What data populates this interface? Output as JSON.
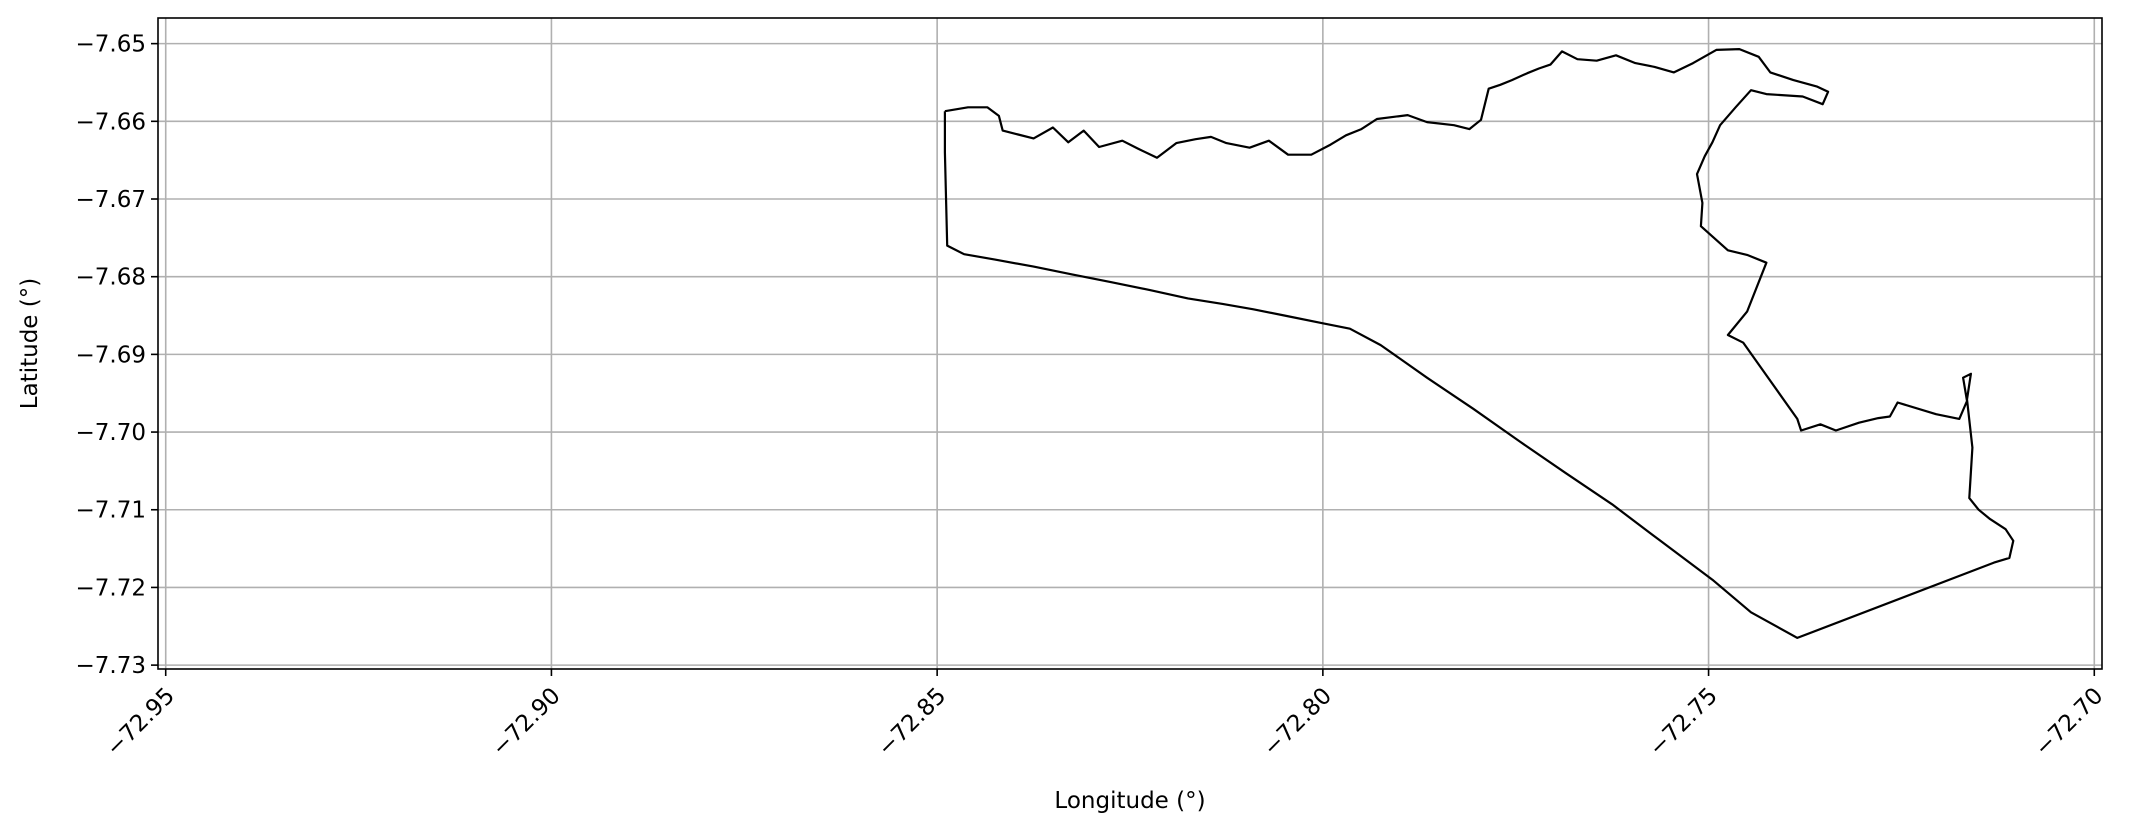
{
  "chart_data": {
    "type": "line",
    "xlabel": "Longitude (°)",
    "ylabel": "Latitude (°)",
    "xlim": [
      -72.951,
      -72.699
    ],
    "ylim": [
      -7.7305,
      -7.6467
    ],
    "grid": true,
    "x_ticks": [
      -72.95,
      -72.9,
      -72.85,
      -72.8,
      -72.75,
      -72.7
    ],
    "x_tick_labels": [
      "−72.95",
      "−72.90",
      "−72.85",
      "−72.80",
      "−72.75",
      "−72.70"
    ],
    "y_ticks": [
      -7.65,
      -7.66,
      -7.67,
      -7.68,
      -7.69,
      -7.7,
      -7.71,
      -7.72,
      -7.73
    ],
    "y_tick_labels": [
      "−7.65",
      "−7.66",
      "−7.67",
      "−7.68",
      "−7.69",
      "−7.70",
      "−7.71",
      "−7.72",
      "−7.73"
    ],
    "series": [
      {
        "color": "#000000",
        "points": [
          [
            -72.849,
            -7.6587
          ],
          [
            -72.846,
            -7.6582
          ],
          [
            -72.8435,
            -7.6582
          ],
          [
            -72.842,
            -7.6593
          ],
          [
            -72.8415,
            -7.6612
          ],
          [
            -72.8395,
            -7.6617
          ],
          [
            -72.8375,
            -7.6622
          ],
          [
            -72.835,
            -7.6608
          ],
          [
            -72.833,
            -7.6627
          ],
          [
            -72.831,
            -7.6612
          ],
          [
            -72.829,
            -7.6633
          ],
          [
            -72.826,
            -7.6625
          ],
          [
            -72.824,
            -7.6635
          ],
          [
            -72.8215,
            -7.6647
          ],
          [
            -72.819,
            -7.6628
          ],
          [
            -72.8165,
            -7.6623
          ],
          [
            -72.8145,
            -7.662
          ],
          [
            -72.8125,
            -7.6628
          ],
          [
            -72.8095,
            -7.6634
          ],
          [
            -72.807,
            -7.6625
          ],
          [
            -72.8045,
            -7.6643
          ],
          [
            -72.8015,
            -7.6643
          ],
          [
            -72.799,
            -7.663
          ],
          [
            -72.797,
            -7.6618
          ],
          [
            -72.795,
            -7.661
          ],
          [
            -72.793,
            -7.6597
          ],
          [
            -72.789,
            -7.6592
          ],
          [
            -72.7865,
            -7.6601
          ],
          [
            -72.783,
            -7.6605
          ],
          [
            -72.781,
            -7.661
          ],
          [
            -72.7795,
            -7.6598
          ],
          [
            -72.7785,
            -7.6558
          ],
          [
            -72.777,
            -7.6553
          ],
          [
            -72.7755,
            -7.6547
          ],
          [
            -72.7735,
            -7.6538
          ],
          [
            -72.772,
            -7.6532
          ],
          [
            -72.7705,
            -7.6527
          ],
          [
            -72.769,
            -7.651
          ],
          [
            -72.767,
            -7.652
          ],
          [
            -72.7645,
            -7.6522
          ],
          [
            -72.762,
            -7.6515
          ],
          [
            -72.7595,
            -7.6525
          ],
          [
            -72.757,
            -7.653
          ],
          [
            -72.7545,
            -7.6537
          ],
          [
            -72.752,
            -7.6525
          ],
          [
            -72.749,
            -7.6508
          ],
          [
            -72.746,
            -7.6507
          ],
          [
            -72.7435,
            -7.6517
          ],
          [
            -72.742,
            -7.6537
          ],
          [
            -72.739,
            -7.6547
          ],
          [
            -72.736,
            -7.6555
          ],
          [
            -72.7345,
            -7.6562
          ],
          [
            -72.7352,
            -7.6578
          ],
          [
            -72.7378,
            -7.6568
          ],
          [
            -72.7425,
            -7.6565
          ],
          [
            -72.7445,
            -7.656
          ],
          [
            -72.7465,
            -7.6582
          ],
          [
            -72.7485,
            -7.6605
          ],
          [
            -72.7495,
            -7.6627
          ],
          [
            -72.7505,
            -7.6645
          ],
          [
            -72.7515,
            -7.6668
          ],
          [
            -72.7508,
            -7.6705
          ],
          [
            -72.751,
            -7.6735
          ],
          [
            -72.7475,
            -7.6766
          ],
          [
            -72.745,
            -7.6772
          ],
          [
            -72.7425,
            -7.6782
          ],
          [
            -72.745,
            -7.6845
          ],
          [
            -72.7475,
            -7.6875
          ],
          [
            -72.7455,
            -7.6885
          ],
          [
            -72.7385,
            -7.6983
          ],
          [
            -72.738,
            -7.6998
          ],
          [
            -72.7355,
            -7.699
          ],
          [
            -72.7335,
            -7.6998
          ],
          [
            -72.7305,
            -7.6988
          ],
          [
            -72.728,
            -7.6982
          ],
          [
            -72.7265,
            -7.698
          ],
          [
            -72.7255,
            -7.6962
          ],
          [
            -72.7205,
            -7.6977
          ],
          [
            -72.7175,
            -7.6983
          ],
          [
            -72.7165,
            -7.696
          ],
          [
            -72.717,
            -7.693
          ],
          [
            -72.716,
            -7.6925
          ],
          [
            -72.7165,
            -7.6958
          ],
          [
            -72.7158,
            -7.702
          ],
          [
            -72.7162,
            -7.7085
          ],
          [
            -72.715,
            -7.71
          ],
          [
            -72.7135,
            -7.7112
          ],
          [
            -72.7115,
            -7.7125
          ],
          [
            -72.7105,
            -7.714
          ],
          [
            -72.711,
            -7.7162
          ],
          [
            -72.713,
            -7.7168
          ],
          [
            -72.7385,
            -7.7265
          ],
          [
            -72.7425,
            -7.7243
          ],
          [
            -72.7445,
            -7.7232
          ],
          [
            -72.7495,
            -7.719
          ],
          [
            -72.7565,
            -7.7138
          ],
          [
            -72.7625,
            -7.7093
          ],
          [
            -72.7685,
            -7.7053
          ],
          [
            -72.7745,
            -7.7012
          ],
          [
            -72.7805,
            -7.697
          ],
          [
            -72.7865,
            -7.693
          ],
          [
            -72.7925,
            -7.6888
          ],
          [
            -72.7965,
            -7.6867
          ],
          [
            -72.8,
            -7.686
          ],
          [
            -72.805,
            -7.685
          ],
          [
            -72.809,
            -7.6842
          ],
          [
            -72.813,
            -7.6835
          ],
          [
            -72.8175,
            -7.6828
          ],
          [
            -72.8225,
            -7.6817
          ],
          [
            -72.8275,
            -7.6807
          ],
          [
            -72.8325,
            -7.6797
          ],
          [
            -72.8375,
            -7.6787
          ],
          [
            -72.8425,
            -7.6778
          ],
          [
            -72.8465,
            -7.6771
          ],
          [
            -72.8487,
            -7.676
          ],
          [
            -72.849,
            -7.664
          ],
          [
            -72.849,
            -7.6587
          ]
        ]
      }
    ]
  }
}
